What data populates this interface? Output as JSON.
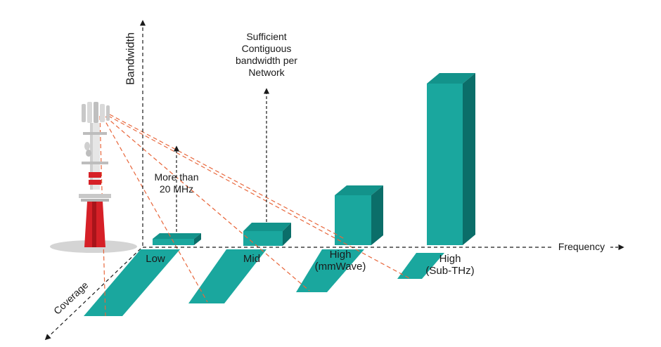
{
  "axes": {
    "bandwidth": "Bandwidth",
    "frequency": "Frequency",
    "coverage": "Coverage"
  },
  "annotations": {
    "more_than_line1": "More than",
    "more_than_line2": "20 MHz",
    "sufficient_line1": "Sufficient",
    "sufficient_line2": "Contiguous",
    "sufficient_line3": "bandwidth per",
    "sufficient_line4": "Network"
  },
  "bands": [
    {
      "label_line1": "Low",
      "label_line2": ""
    },
    {
      "label_line1": "Mid",
      "label_line2": ""
    },
    {
      "label_line1": "High",
      "label_line2": "(mmWave)"
    },
    {
      "label_line1": "High",
      "label_line2": "(Sub-THz)"
    }
  ],
  "colors": {
    "teal_front": "#1aa79e",
    "teal_top": "#13938b",
    "teal_side": "#0b6e69",
    "signal": "#e8673c",
    "tower_red": "#d62027",
    "tower_grey": "#c8c8c8",
    "axis": "#1a1a1a"
  }
}
